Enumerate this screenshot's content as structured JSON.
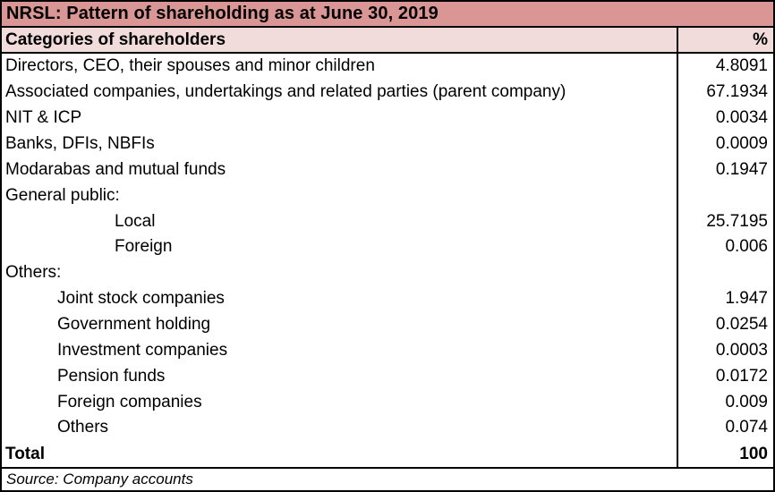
{
  "chart_data": {
    "type": "table",
    "title": "NRSL: Pattern of shareholding as at June 30, 2019",
    "columns": {
      "category": "Categories of shareholders",
      "percent": "%"
    },
    "rows": [
      {
        "label": "Directors, CEO, their spouses and minor children",
        "value": 4.8091,
        "indent": 0
      },
      {
        "label": "Associated companies, undertakings and related parties (parent company)",
        "value": 67.1934,
        "indent": 0
      },
      {
        "label": "NIT & ICP",
        "value": 0.0034,
        "indent": 0
      },
      {
        "label": "Banks, DFIs, NBFIs",
        "value": 0.0009,
        "indent": 0
      },
      {
        "label": "Modarabas and mutual funds",
        "value": 0.1947,
        "indent": 0
      },
      {
        "label": "General public:",
        "value": "",
        "indent": 0
      },
      {
        "label": "Local",
        "value": 25.7195,
        "indent": 2
      },
      {
        "label": "Foreign",
        "value": 0.006,
        "indent": 2
      },
      {
        "label": "Others:",
        "value": "",
        "indent": 0
      },
      {
        "label": "Joint stock companies",
        "value": 1.947,
        "indent": 1
      },
      {
        "label": "Government holding",
        "value": 0.0254,
        "indent": 1
      },
      {
        "label": "Investment companies",
        "value": 0.0003,
        "indent": 1
      },
      {
        "label": "Pension funds",
        "value": 0.0172,
        "indent": 1
      },
      {
        "label": "Foreign companies",
        "value": 0.009,
        "indent": 1
      },
      {
        "label": "Others",
        "value": 0.074,
        "indent": 1
      }
    ],
    "total_label": "Total",
    "total_value": 100,
    "source": "Source: Company accounts"
  },
  "colors": {
    "title_bg": "#d99694",
    "header_bg": "#f2dcdb",
    "border": "#000000"
  }
}
